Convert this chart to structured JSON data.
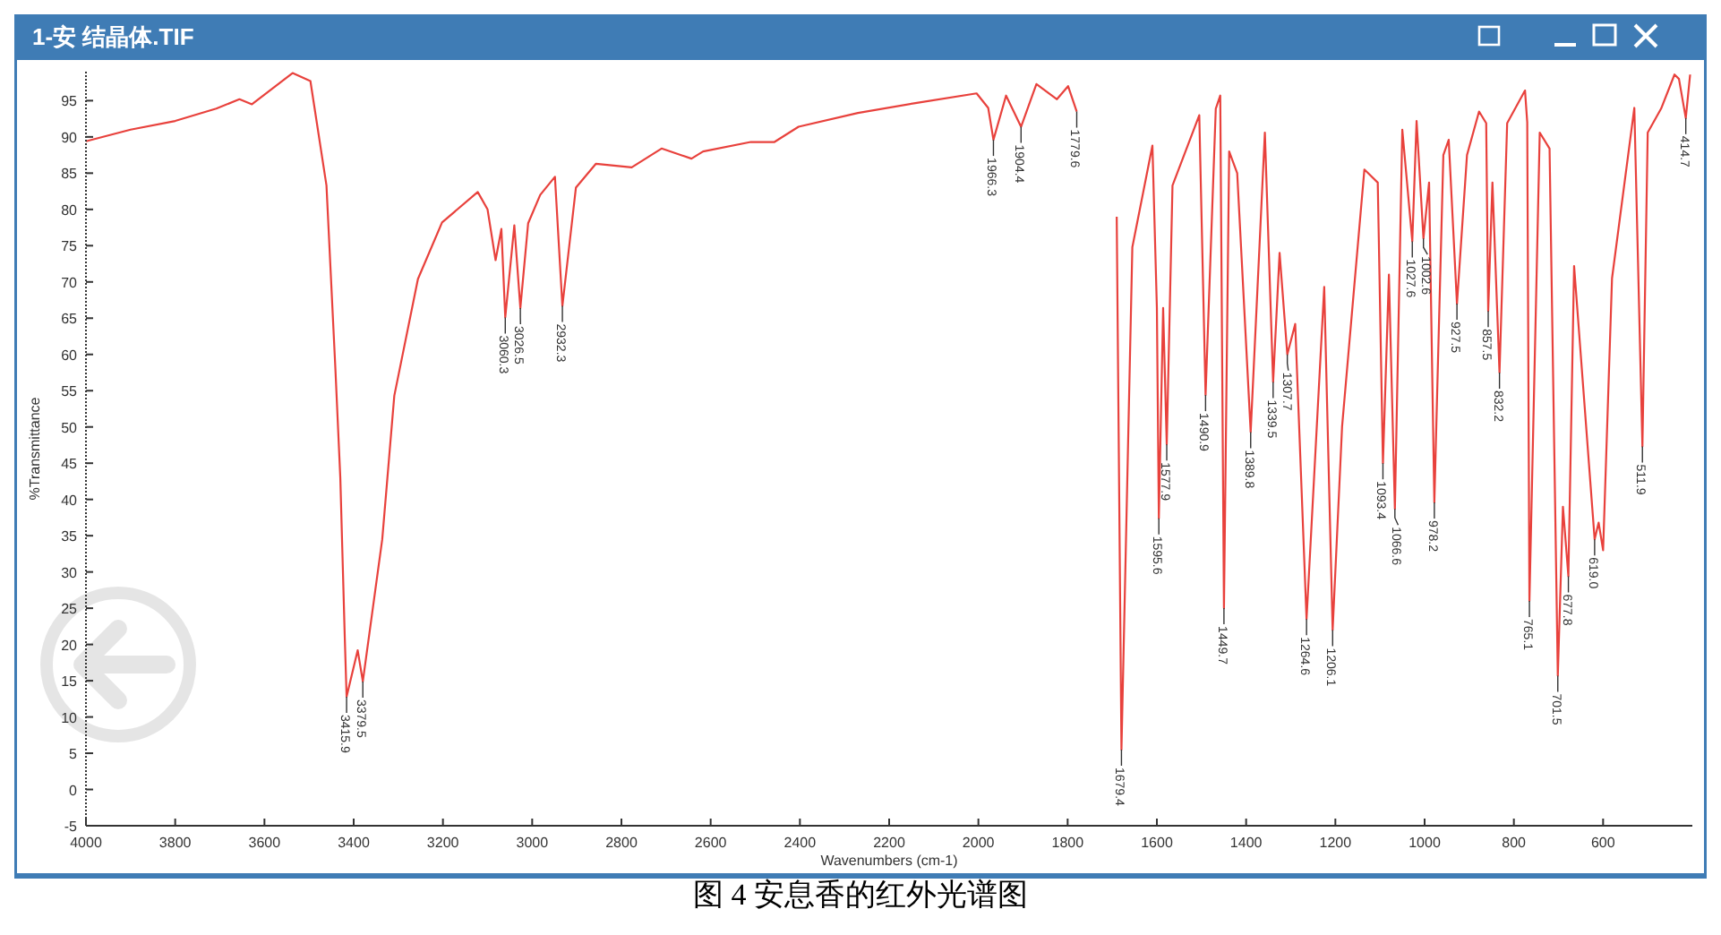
{
  "chart_data": {
    "type": "line",
    "title": "1-安 结晶体.TIF",
    "xlabel": "Wavenumbers (cm-1)",
    "ylabel": "%Transmittance",
    "xlim": [
      4000,
      400
    ],
    "xticks": [
      4000,
      3800,
      3600,
      3400,
      3200,
      3000,
      2800,
      2600,
      2400,
      2200,
      2000,
      1800,
      1600,
      1400,
      1200,
      1000,
      800,
      600
    ],
    "ylim": [
      -5,
      99
    ],
    "yticks": [
      -5,
      0,
      5,
      10,
      15,
      20,
      25,
      30,
      35,
      40,
      45,
      50,
      55,
      60,
      65,
      70,
      75,
      80,
      85,
      90,
      95
    ],
    "grid": false,
    "marker": "none",
    "line_style": "solid",
    "series": [
      {
        "color": "#e8413c",
        "x": [
          4000,
          3900,
          3800,
          3708,
          3656,
          3628,
          3537,
          3497,
          3461,
          3441,
          3430,
          3420,
          3415.9,
          3391,
          3379.5,
          3336,
          3309,
          3256,
          3202,
          3122,
          3100,
          3082,
          3069,
          3060.3,
          3040,
          3026.5,
          3009,
          2982,
          2949,
          2932.3,
          2902,
          2857,
          2777,
          2710,
          2643,
          2617,
          2510,
          2457,
          2403,
          2270,
          2138,
          2004,
          1978,
          1966.3,
          1938,
          1904.4,
          1870,
          1824,
          1799,
          1779.6,
          1751,
          1711,
          1690,
          1679.4,
          1655,
          1610,
          1600,
          1595.6,
          1586,
          1577.9,
          1565,
          1505,
          1490.9,
          1468,
          1458,
          1449.7,
          1438,
          1420,
          1389.8,
          1358,
          1339.5,
          1325,
          1307.7,
          1290,
          1264.6,
          1225,
          1206.1,
          1185,
          1135,
          1105,
          1093.4,
          1080,
          1066.6,
          1050,
          1027.6,
          1018,
          1002.6,
          990,
          978.2,
          958,
          946,
          927.5,
          905,
          878,
          862,
          857.5,
          848,
          832.2,
          815,
          775,
          770,
          765.1,
          742,
          720,
          701.5,
          690,
          677.8,
          665,
          619,
          610,
          600,
          580,
          530,
          511.9,
          500,
          470,
          440,
          430,
          414.7,
          405
        ],
        "values": [
          89.4,
          91,
          92.2,
          93.9,
          95.2,
          94.5,
          98.8,
          97.7,
          83.3,
          58,
          43,
          21,
          12.8,
          19.2,
          14.9,
          34.5,
          54.3,
          70.4,
          78.2,
          82.4,
          80,
          73,
          77.3,
          65.1,
          77.8,
          66.4,
          78.1,
          82,
          84.5,
          66.7,
          83,
          86.3,
          85.8,
          88.4,
          87,
          88,
          89.3,
          89.3,
          91.4,
          93.3,
          94.7,
          96,
          94,
          89.6,
          95.7,
          91.4,
          97.3,
          95.2,
          97,
          93.5,
          null,
          null,
          79,
          5.5,
          74.8,
          88.8,
          66.4,
          37.4,
          66.4,
          47.6,
          83.3,
          93,
          54.4,
          93.9,
          95.7,
          25,
          88,
          85,
          49.3,
          90.6,
          56.2,
          74,
          60,
          64.2,
          23.5,
          69.3,
          22,
          50,
          85.5,
          83.7,
          45,
          71,
          38.7,
          91,
          75.6,
          92.2,
          76,
          83.7,
          39.6,
          87.5,
          89.6,
          67,
          87.5,
          93.5,
          91.9,
          66,
          83.7,
          57.5,
          91.9,
          96.4,
          92,
          26,
          90.6,
          88.4,
          15.7,
          39,
          29.4,
          72.2,
          34.5,
          36.8,
          33,
          70.5,
          94,
          47.3,
          90.6,
          93.9,
          98.6,
          98,
          92.6,
          98.6
        ]
      }
    ],
    "annotations": [
      {
        "text": "3415.9",
        "x": 3415.9,
        "y": 12.8
      },
      {
        "text": "3379.5",
        "x": 3379.5,
        "y": 14.9
      },
      {
        "text": "3060.3",
        "x": 3060.3,
        "y": 65.1
      },
      {
        "text": "3026.5",
        "x": 3026.5,
        "y": 66.4
      },
      {
        "text": "2932.3",
        "x": 2932.3,
        "y": 66.7
      },
      {
        "text": "1966.3",
        "x": 1966.3,
        "y": 89.6
      },
      {
        "text": "1904.4",
        "x": 1904.4,
        "y": 91.4
      },
      {
        "text": "1779.6",
        "x": 1779.6,
        "y": 93.5
      },
      {
        "text": "1679.4",
        "x": 1679.4,
        "y": 5.5
      },
      {
        "text": "1595.6",
        "x": 1595.6,
        "y": 37.4
      },
      {
        "text": "1577.9",
        "x": 1577.9,
        "y": 47.6
      },
      {
        "text": "1490.9",
        "x": 1490.9,
        "y": 54.4
      },
      {
        "text": "1449.7",
        "x": 1449.7,
        "y": 25
      },
      {
        "text": "1389.8",
        "x": 1389.8,
        "y": 49.3
      },
      {
        "text": "1339.5",
        "x": 1339.5,
        "y": 56.2
      },
      {
        "text": "1307.7",
        "x": 1307.7,
        "y": 60
      },
      {
        "text": "1264.6",
        "x": 1264.6,
        "y": 23.5
      },
      {
        "text": "1206.1",
        "x": 1206.1,
        "y": 22
      },
      {
        "text": "1093.4",
        "x": 1093.4,
        "y": 45
      },
      {
        "text": "1066.6",
        "x": 1066.6,
        "y": 38.7
      },
      {
        "text": "1027.6",
        "x": 1027.6,
        "y": 75.6
      },
      {
        "text": "1002.6",
        "x": 1002.6,
        "y": 76
      },
      {
        "text": "978.2",
        "x": 978.2,
        "y": 39.6
      },
      {
        "text": "927.5",
        "x": 927.5,
        "y": 67
      },
      {
        "text": "857.5",
        "x": 857.5,
        "y": 66
      },
      {
        "text": "832.2",
        "x": 832.2,
        "y": 57.5
      },
      {
        "text": "765.1",
        "x": 765.1,
        "y": 26
      },
      {
        "text": "701.5",
        "x": 701.5,
        "y": 15.7
      },
      {
        "text": "677.8",
        "x": 677.8,
        "y": 29.4
      },
      {
        "text": "619.0",
        "x": 619,
        "y": 34.5
      },
      {
        "text": "511.9",
        "x": 511.9,
        "y": 47.3
      },
      {
        "text": "414.7",
        "x": 414.7,
        "y": 92.6
      },
      "图 4  安息香的红外光谱图"
    ]
  }
}
